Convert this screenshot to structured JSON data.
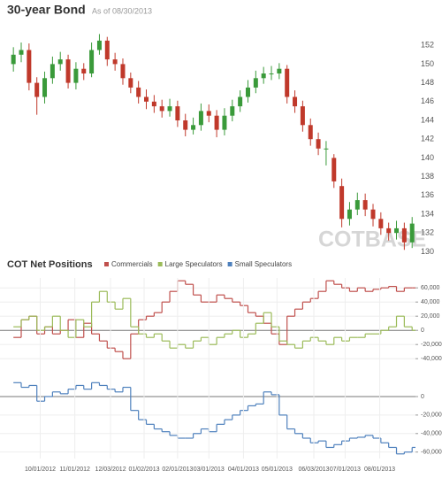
{
  "chart_data": [
    {
      "type": "candlestick",
      "title": "30-year Bond",
      "subtitle": "As of 08/30/2013",
      "watermark": "COTBASE",
      "up_color": "#3a9a3a",
      "down_color": "#c0392b",
      "x": [
        "09/07/2012",
        "09/14/2012",
        "09/21/2012",
        "09/28/2012",
        "10/05/2012",
        "10/12/2012",
        "10/19/2012",
        "10/26/2012",
        "11/02/2012",
        "11/09/2012",
        "11/16/2012",
        "11/23/2012",
        "11/30/2012",
        "12/07/2012",
        "12/14/2012",
        "12/21/2012",
        "12/28/2012",
        "01/04/2013",
        "01/11/2013",
        "01/18/2013",
        "01/25/2013",
        "02/01/2013",
        "02/08/2013",
        "02/15/2013",
        "02/22/2013",
        "03/01/2013",
        "03/08/2013",
        "03/15/2013",
        "03/22/2013",
        "03/29/2013",
        "04/05/2013",
        "04/12/2013",
        "04/19/2013",
        "04/26/2013",
        "05/03/2013",
        "05/10/2013",
        "05/17/2013",
        "05/24/2013",
        "05/31/2013",
        "06/07/2013",
        "06/14/2013",
        "06/21/2013",
        "06/28/2013",
        "07/05/2013",
        "07/12/2013",
        "07/19/2013",
        "07/26/2013",
        "08/02/2013",
        "08/09/2013",
        "08/16/2013",
        "08/23/2013",
        "08/30/2013"
      ],
      "open": [
        150,
        151,
        151.5,
        148,
        146.5,
        148.5,
        150,
        150.5,
        148,
        149.5,
        149,
        151.5,
        152.5,
        150.5,
        150,
        148.5,
        147.5,
        146.5,
        146,
        145.5,
        145,
        145.5,
        144,
        143,
        143.5,
        145,
        144.5,
        143,
        144.5,
        145.5,
        146.5,
        147.5,
        148.5,
        149,
        149,
        149.5,
        146.5,
        145.5,
        143.5,
        142,
        141,
        140,
        137,
        133.5,
        134.5,
        135.5,
        134.5,
        133.5,
        132.5,
        132,
        132.5,
        131
      ],
      "high": [
        151.8,
        152.3,
        152.2,
        148.6,
        149.2,
        150.8,
        151.3,
        151,
        150.2,
        150.1,
        152.3,
        153.2,
        152.9,
        151.2,
        150.6,
        149.1,
        148.2,
        147.3,
        146.7,
        146.2,
        146.3,
        146.1,
        144.7,
        144.3,
        145.8,
        145.7,
        145.1,
        145.3,
        146.2,
        147.2,
        148.3,
        149.3,
        149.7,
        149.8,
        150.1,
        149.9,
        147.2,
        146.1,
        144.2,
        142.7,
        141.8,
        140.4,
        137.8,
        135.3,
        136.3,
        136.2,
        135.1,
        134.2,
        133.1,
        133.3,
        133.1,
        133.7
      ],
      "low": [
        149.2,
        150.2,
        147.2,
        144.6,
        145.8,
        147.9,
        149.3,
        147.4,
        147.3,
        148.3,
        148.6,
        151,
        149.8,
        149.3,
        147.8,
        146.9,
        145.8,
        145.2,
        144.8,
        144.3,
        144.4,
        143.3,
        142.3,
        142.5,
        142.9,
        143.8,
        142.2,
        142.4,
        143.9,
        144.9,
        145.9,
        146.9,
        147.9,
        148.3,
        148.4,
        145.8,
        144.8,
        142.8,
        141.3,
        140.3,
        139.2,
        136.8,
        132.6,
        132.8,
        133.9,
        133.8,
        132.7,
        131.8,
        131.2,
        131.3,
        130.2,
        130.4
      ],
      "close": [
        151,
        151.5,
        148,
        146.5,
        148.5,
        150,
        150.5,
        148,
        149.5,
        149,
        151.5,
        152.5,
        150.5,
        150,
        148.5,
        147.5,
        146.5,
        146,
        145.5,
        145,
        145.5,
        144,
        143,
        143.5,
        145,
        144.5,
        143,
        144.5,
        145.5,
        146.5,
        147.5,
        148.5,
        149,
        149,
        149.5,
        146.5,
        145.5,
        143.5,
        142,
        141,
        141,
        137.5,
        133.5,
        134.5,
        135.5,
        134.5,
        133.5,
        132.5,
        132,
        132.5,
        131,
        133
      ],
      "xlim": [
        "08/26/2012",
        "09/02/2013"
      ],
      "ylim": [
        129,
        154
      ],
      "yticks": [
        130,
        132,
        134,
        136,
        138,
        140,
        142,
        144,
        146,
        148,
        150,
        152
      ]
    },
    {
      "type": "step",
      "title": "COT Net Positions",
      "grid": true,
      "x": [
        "09/07/2012",
        "09/14/2012",
        "09/21/2012",
        "09/28/2012",
        "10/05/2012",
        "10/12/2012",
        "10/19/2012",
        "10/26/2012",
        "11/02/2012",
        "11/09/2012",
        "11/16/2012",
        "11/23/2012",
        "11/30/2012",
        "12/07/2012",
        "12/14/2012",
        "12/21/2012",
        "12/28/2012",
        "01/04/2013",
        "01/11/2013",
        "01/18/2013",
        "01/25/2013",
        "02/01/2013",
        "02/08/2013",
        "02/15/2013",
        "02/22/2013",
        "03/01/2013",
        "03/08/2013",
        "03/15/2013",
        "03/22/2013",
        "03/29/2013",
        "04/05/2013",
        "04/12/2013",
        "04/19/2013",
        "04/26/2013",
        "05/03/2013",
        "05/10/2013",
        "05/17/2013",
        "05/24/2013",
        "05/31/2013",
        "06/07/2013",
        "06/14/2013",
        "06/21/2013",
        "06/28/2013",
        "07/05/2013",
        "07/12/2013",
        "07/19/2013",
        "07/26/2013",
        "08/02/2013",
        "08/09/2013",
        "08/16/2013",
        "08/23/2013",
        "08/30/2013"
      ],
      "series": [
        {
          "name": "Commercials",
          "color": "#c0504d",
          "values": [
            -10000,
            15000,
            20000,
            -5000,
            5000,
            -5000,
            0,
            15000,
            -10000,
            10000,
            -5000,
            -15000,
            -25000,
            -30000,
            -40000,
            -5000,
            15000,
            20000,
            25000,
            40000,
            55000,
            70000,
            65000,
            50000,
            40000,
            40000,
            50000,
            45000,
            40000,
            35000,
            25000,
            20000,
            10000,
            -5000,
            -20000,
            20000,
            30000,
            40000,
            45000,
            55000,
            70000,
            65000,
            60000,
            55000,
            60000,
            55000,
            58000,
            60000,
            62000,
            55000,
            60000,
            60000
          ]
        },
        {
          "name": "Large Speculators",
          "color": "#9bbb59",
          "values": [
            5000,
            15000,
            20000,
            0,
            5000,
            20000,
            0,
            -10000,
            15000,
            5000,
            40000,
            55000,
            40000,
            30000,
            45000,
            5000,
            -5000,
            -10000,
            -5000,
            -15000,
            -25000,
            -20000,
            -25000,
            -15000,
            -10000,
            -20000,
            -10000,
            -5000,
            0,
            -10000,
            -5000,
            10000,
            25000,
            5000,
            -15000,
            -20000,
            -25000,
            -15000,
            -10000,
            -15000,
            -20000,
            -10000,
            -15000,
            -10000,
            -10000,
            -5000,
            -5000,
            0,
            5000,
            20000,
            5000,
            0
          ]
        },
        {
          "name": "Small Speculators",
          "color": "#4f81bd"
        }
      ],
      "xlim": [
        "08/26/2012",
        "09/02/2013"
      ],
      "ylim": [
        -46000,
        74000
      ],
      "yticks": [
        {
          "value": 60000,
          "label": "60,000"
        },
        {
          "value": 40000,
          "label": "40,000"
        },
        {
          "value": 20000,
          "label": "20,000"
        },
        0,
        {
          "value": -20000,
          "label": "-20,000"
        },
        {
          "value": -40000,
          "label": "-40,000"
        }
      ]
    },
    {
      "type": "step",
      "grid": true,
      "x": [
        "09/07/2012",
        "09/14/2012",
        "09/21/2012",
        "09/28/2012",
        "10/05/2012",
        "10/12/2012",
        "10/19/2012",
        "10/26/2012",
        "11/02/2012",
        "11/09/2012",
        "11/16/2012",
        "11/23/2012",
        "11/30/2012",
        "12/07/2012",
        "12/14/2012",
        "12/21/2012",
        "12/28/2012",
        "01/04/2013",
        "01/11/2013",
        "01/18/2013",
        "01/25/2013",
        "02/01/2013",
        "02/08/2013",
        "02/15/2013",
        "02/22/2013",
        "03/01/2013",
        "03/08/2013",
        "03/15/2013",
        "03/22/2013",
        "03/29/2013",
        "04/05/2013",
        "04/12/2013",
        "04/19/2013",
        "04/26/2013",
        "05/03/2013",
        "05/10/2013",
        "05/17/2013",
        "05/24/2013",
        "05/31/2013",
        "06/07/2013",
        "06/14/2013",
        "06/21/2013",
        "06/28/2013",
        "07/05/2013",
        "07/12/2013",
        "07/19/2013",
        "07/26/2013",
        "08/02/2013",
        "08/09/2013",
        "08/16/2013",
        "08/23/2013",
        "08/30/2013"
      ],
      "series": [
        {
          "color": "#4f81bd",
          "values": [
            15000,
            10000,
            12000,
            -5000,
            0,
            5000,
            3000,
            8000,
            12000,
            8000,
            15000,
            12000,
            8000,
            5000,
            10000,
            -15000,
            -25000,
            -30000,
            -35000,
            -38000,
            -42000,
            -45000,
            -45000,
            -40000,
            -35000,
            -38000,
            -30000,
            -25000,
            -20000,
            -15000,
            -10000,
            -8000,
            5000,
            2000,
            -20000,
            -35000,
            -40000,
            -45000,
            -50000,
            -48000,
            -55000,
            -52000,
            -48000,
            -45000,
            -44000,
            -42000,
            -45000,
            -50000,
            -55000,
            -62000,
            -60000,
            -55000
          ]
        }
      ],
      "xlim": [
        "08/26/2012",
        "09/02/2013"
      ],
      "ylim": [
        -67000,
        22000
      ],
      "yticks": [
        0,
        {
          "value": -20000,
          "label": "-20,000"
        },
        {
          "value": -40000,
          "label": "-40,000"
        },
        {
          "value": -60000,
          "label": "-60,000"
        }
      ],
      "xticks": [
        "10/01/2012",
        "11/01/2012",
        "12/03/2012",
        "01/02/2013",
        "02/01/2013",
        "03/01/2013",
        "04/01/2013",
        "05/01/2013",
        "06/03/2013",
        "07/01/2013",
        "08/01/2013"
      ]
    }
  ]
}
